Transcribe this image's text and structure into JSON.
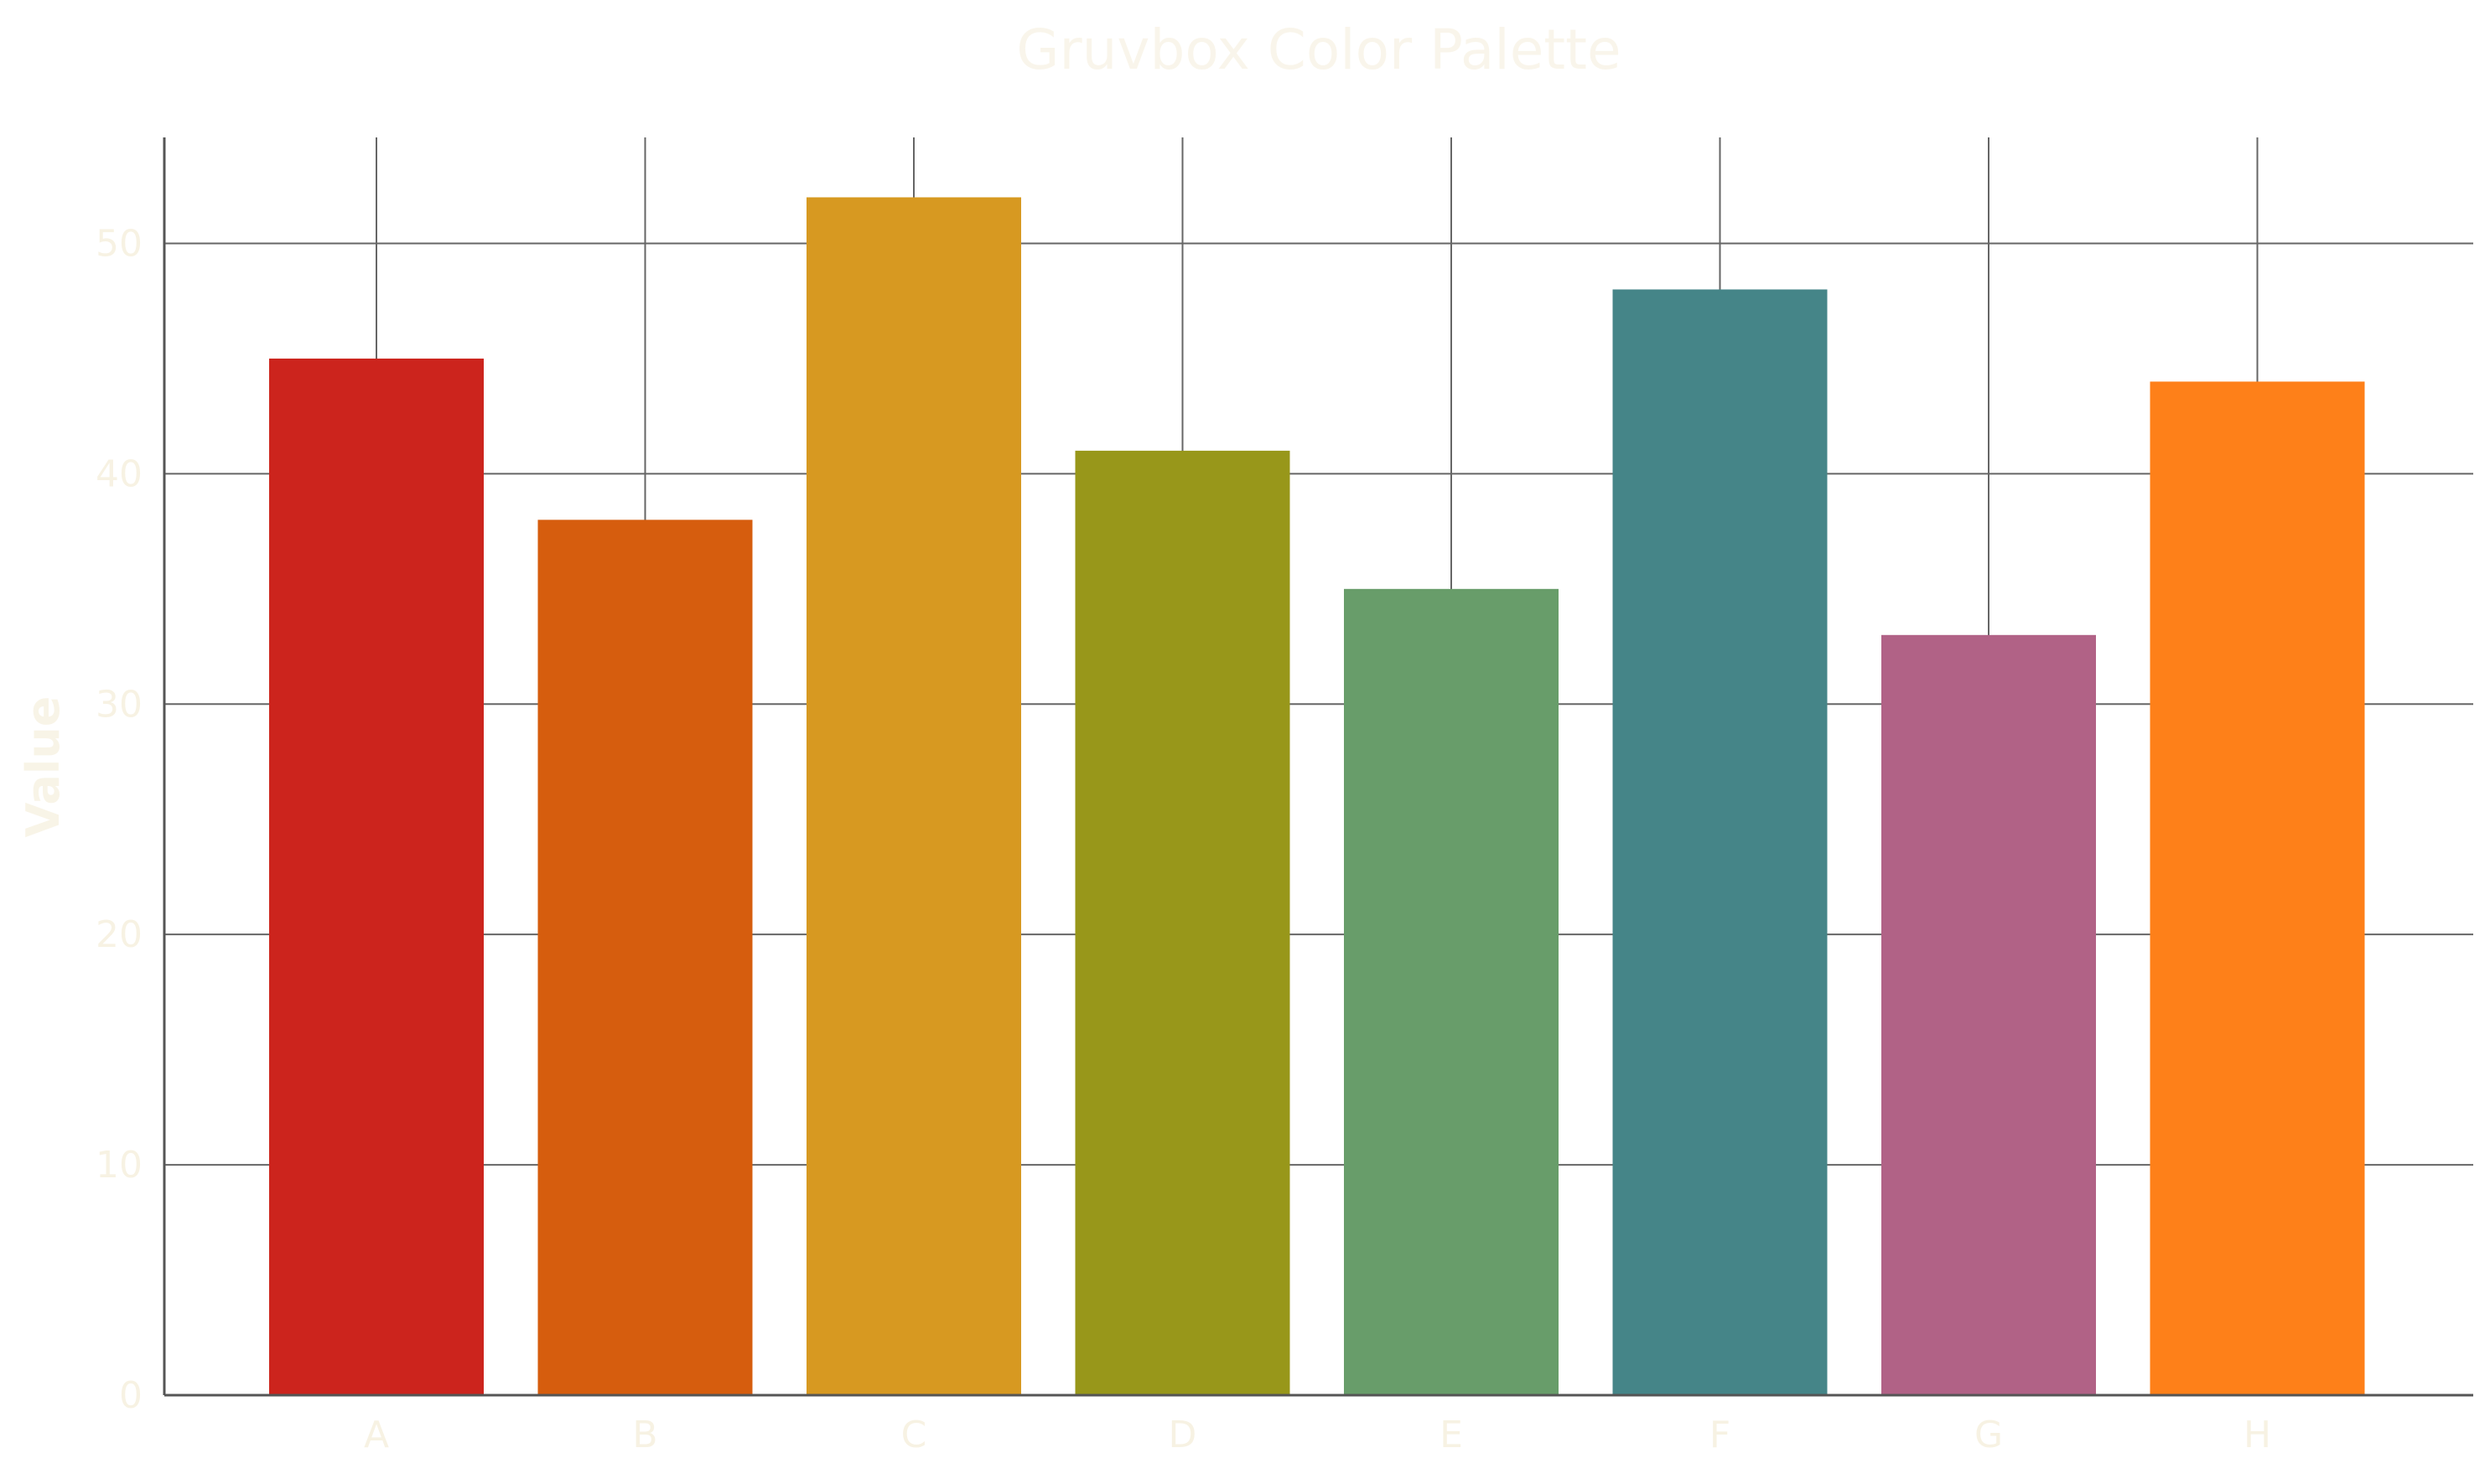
{
  "chart_data": {
    "type": "bar",
    "title": "Gruvbox Color Palette",
    "xlabel": "",
    "ylabel": "Value",
    "categories": [
      "A",
      "B",
      "C",
      "D",
      "E",
      "F",
      "G",
      "H"
    ],
    "values": [
      45,
      38,
      52,
      41,
      35,
      48,
      33,
      44
    ],
    "colors": [
      "#cc241d",
      "#d65d0e",
      "#d79921",
      "#98971a",
      "#689d6a",
      "#458588",
      "#b16286",
      "#fe8019"
    ],
    "ylim": [
      0,
      54.6
    ],
    "yticks": [
      0,
      10,
      20,
      30,
      40,
      50
    ],
    "grid": true,
    "legend": "none"
  }
}
